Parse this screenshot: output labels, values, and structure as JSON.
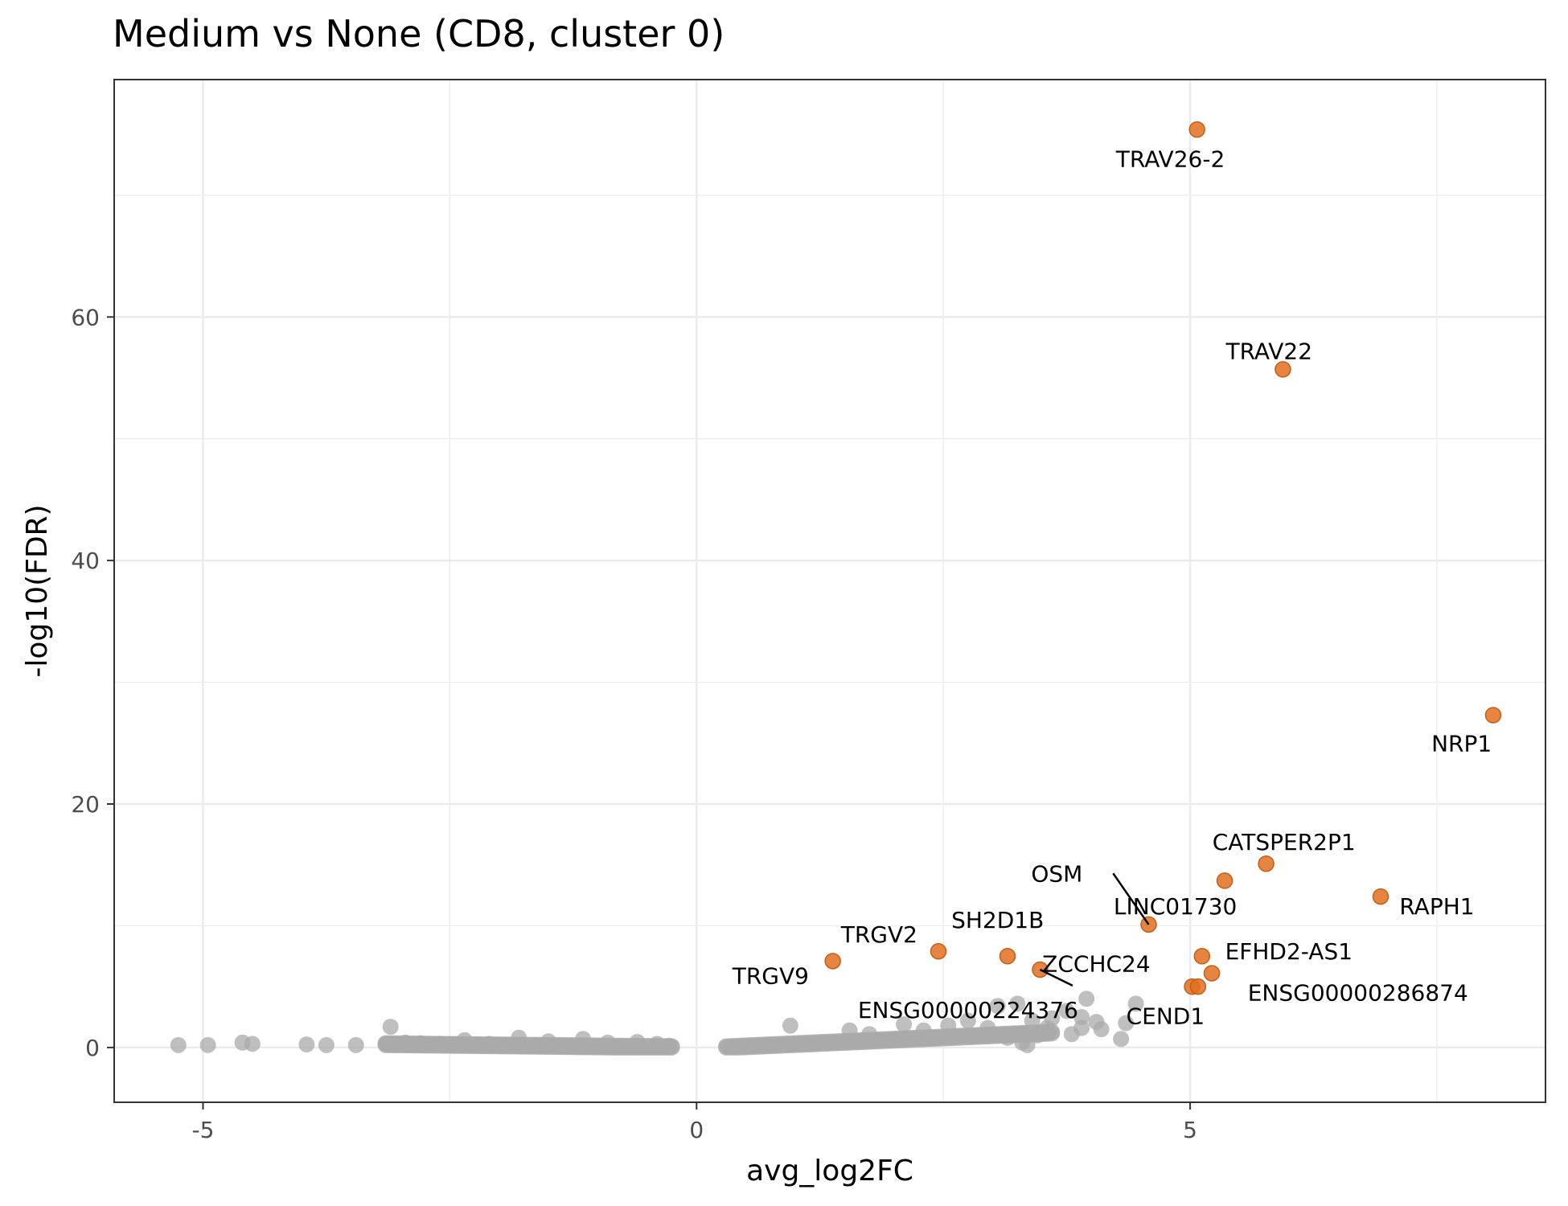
{
  "chart_data": {
    "type": "scatter",
    "title": "Medium vs None (CD8, cluster 0)",
    "xlabel": "avg_log2FC",
    "ylabel": "-log10(FDR)",
    "xlim": [
      -5.9,
      8.6
    ],
    "ylim": [
      -4.5,
      79.5
    ],
    "x_ticks": [
      -5,
      0,
      5
    ],
    "x_tick_labels": [
      "-5",
      "0",
      "5"
    ],
    "y_ticks": [
      0,
      20,
      40,
      60
    ],
    "y_tick_labels": [
      "0",
      "20",
      "40",
      "60"
    ],
    "grid": true,
    "legend": "none",
    "colors": {
      "significant": "#E07020",
      "background": "#AAAAAA",
      "grid": "#EBEBEB",
      "border": "#333333"
    },
    "series": [
      {
        "group": "significant",
        "points": [
          {
            "label": "TRAV26-2",
            "x": 5.07,
            "y": 75.4
          },
          {
            "label": "TRAV22",
            "x": 5.94,
            "y": 55.7
          },
          {
            "label": "NRP1",
            "x": 8.07,
            "y": 27.3
          },
          {
            "label": "CATSPER2P1",
            "x": 5.77,
            "y": 15.1
          },
          {
            "label": "LINC01730",
            "x": 5.35,
            "y": 13.7
          },
          {
            "label": "RAPH1",
            "x": 6.93,
            "y": 12.4
          },
          {
            "label": "OSM",
            "x": 4.58,
            "y": 10.1
          },
          {
            "label": "TRGV2",
            "x": 2.45,
            "y": 7.9
          },
          {
            "label": "SH2D1B",
            "x": 3.15,
            "y": 7.5
          },
          {
            "label": "EFHD2-AS1",
            "x": 5.12,
            "y": 7.5
          },
          {
            "label": "TRGV9",
            "x": 1.38,
            "y": 7.1
          },
          {
            "label": "ZCCHC24",
            "x": 3.48,
            "y": 6.4
          },
          {
            "label": "ENSG00000286874",
            "x": 5.22,
            "y": 6.1
          },
          {
            "label": "ENSG00000224376",
            "x": 5.02,
            "y": 5.0
          },
          {
            "label": "CEND1",
            "x": 5.08,
            "y": 5.0
          }
        ]
      },
      {
        "group": "background",
        "points": [
          {
            "x": -5.25,
            "y": 0.2
          },
          {
            "x": -4.95,
            "y": 0.2
          },
          {
            "x": -4.6,
            "y": 0.4
          },
          {
            "x": -4.5,
            "y": 0.3
          },
          {
            "x": -3.95,
            "y": 0.25
          },
          {
            "x": -3.75,
            "y": 0.2
          },
          {
            "x": -3.45,
            "y": 0.2
          },
          {
            "x": -3.1,
            "y": 1.7
          },
          {
            "x": -3.15,
            "y": 0.3
          },
          {
            "x": -2.95,
            "y": 0.4
          },
          {
            "x": -2.8,
            "y": 0.35
          },
          {
            "x": -2.6,
            "y": 0.3
          },
          {
            "x": -2.35,
            "y": 0.6
          },
          {
            "x": -2.1,
            "y": 0.3
          },
          {
            "x": -1.8,
            "y": 0.8
          },
          {
            "x": -1.5,
            "y": 0.5
          },
          {
            "x": -1.15,
            "y": 0.7
          },
          {
            "x": -0.9,
            "y": 0.4
          },
          {
            "x": -0.6,
            "y": 0.45
          },
          {
            "x": -0.4,
            "y": 0.3
          },
          {
            "x": -0.28,
            "y": 0.15
          },
          {
            "x": 0.95,
            "y": 1.8
          },
          {
            "x": 1.55,
            "y": 1.4
          },
          {
            "x": 1.75,
            "y": 1.1
          },
          {
            "x": 2.1,
            "y": 1.9
          },
          {
            "x": 2.3,
            "y": 1.4
          },
          {
            "x": 2.55,
            "y": 1.8
          },
          {
            "x": 2.75,
            "y": 2.2
          },
          {
            "x": 2.95,
            "y": 1.6
          },
          {
            "x": 3.25,
            "y": 3.6
          },
          {
            "x": 3.4,
            "y": 2.2
          },
          {
            "x": 3.45,
            "y": 1.0
          },
          {
            "x": 3.3,
            "y": 0.4
          },
          {
            "x": 3.6,
            "y": 2.4
          },
          {
            "x": 3.75,
            "y": 3.0
          },
          {
            "x": 3.9,
            "y": 2.5
          },
          {
            "x": 3.95,
            "y": 4.0
          },
          {
            "x": 3.8,
            "y": 1.1
          },
          {
            "x": 4.05,
            "y": 2.1
          },
          {
            "x": 4.1,
            "y": 1.5
          },
          {
            "x": 4.45,
            "y": 3.6
          },
          {
            "x": 4.35,
            "y": 2.0
          },
          {
            "x": 4.3,
            "y": 0.7
          },
          {
            "x": 3.9,
            "y": 1.6
          },
          {
            "x": 3.15,
            "y": 0.8
          },
          {
            "x": 3.35,
            "y": 0.2
          },
          {
            "x": 3.05,
            "y": 3.4
          },
          {
            "x": 3.55,
            "y": 1.6
          }
        ]
      }
    ],
    "bands": [
      {
        "group": "background",
        "x_from": -3.15,
        "x_to": -0.25,
        "y_start": 0.35,
        "y_end": 0.1
      },
      {
        "group": "background",
        "x_from": 0.3,
        "x_to": 3.6,
        "y_start": 0.1,
        "y_end": 1.3
      }
    ],
    "annotations": [
      {
        "text": "TRAV26-2",
        "x": 4.8,
        "y": 73.0,
        "leader": false
      },
      {
        "text": "TRAV22",
        "x": 5.8,
        "y": 57.2,
        "leader": false
      },
      {
        "text": "NRP1",
        "x": 7.75,
        "y": 25.0,
        "leader": false
      },
      {
        "text": "CATSPER2P1",
        "x": 5.95,
        "y": 16.9,
        "leader": false
      },
      {
        "text": "OSM",
        "x": 3.65,
        "y": 14.3,
        "leader": true
      },
      {
        "text": "LINC01730",
        "x": 4.85,
        "y": 11.6,
        "leader": false
      },
      {
        "text": "RAPH1",
        "x": 7.5,
        "y": 11.6,
        "leader": false
      },
      {
        "text": "TRGV2",
        "x": 1.85,
        "y": 9.3,
        "leader": false
      },
      {
        "text": "SH2D1B",
        "x": 3.05,
        "y": 10.5,
        "leader": false
      },
      {
        "text": "EFHD2-AS1",
        "x": 6.0,
        "y": 7.9,
        "leader": false
      },
      {
        "text": "ZCCHC24",
        "x": 4.05,
        "y": 6.9,
        "leader": false
      },
      {
        "text": "TRGV9",
        "x": 0.75,
        "y": 5.9,
        "leader": false
      },
      {
        "text": "ENSG00000286874",
        "x": 6.7,
        "y": 4.5,
        "leader": false
      },
      {
        "text": "ENSG00000224376",
        "x": 2.75,
        "y": 3.1,
        "leader": true
      },
      {
        "text": "CEND1",
        "x": 4.75,
        "y": 2.6,
        "leader": false
      }
    ]
  }
}
